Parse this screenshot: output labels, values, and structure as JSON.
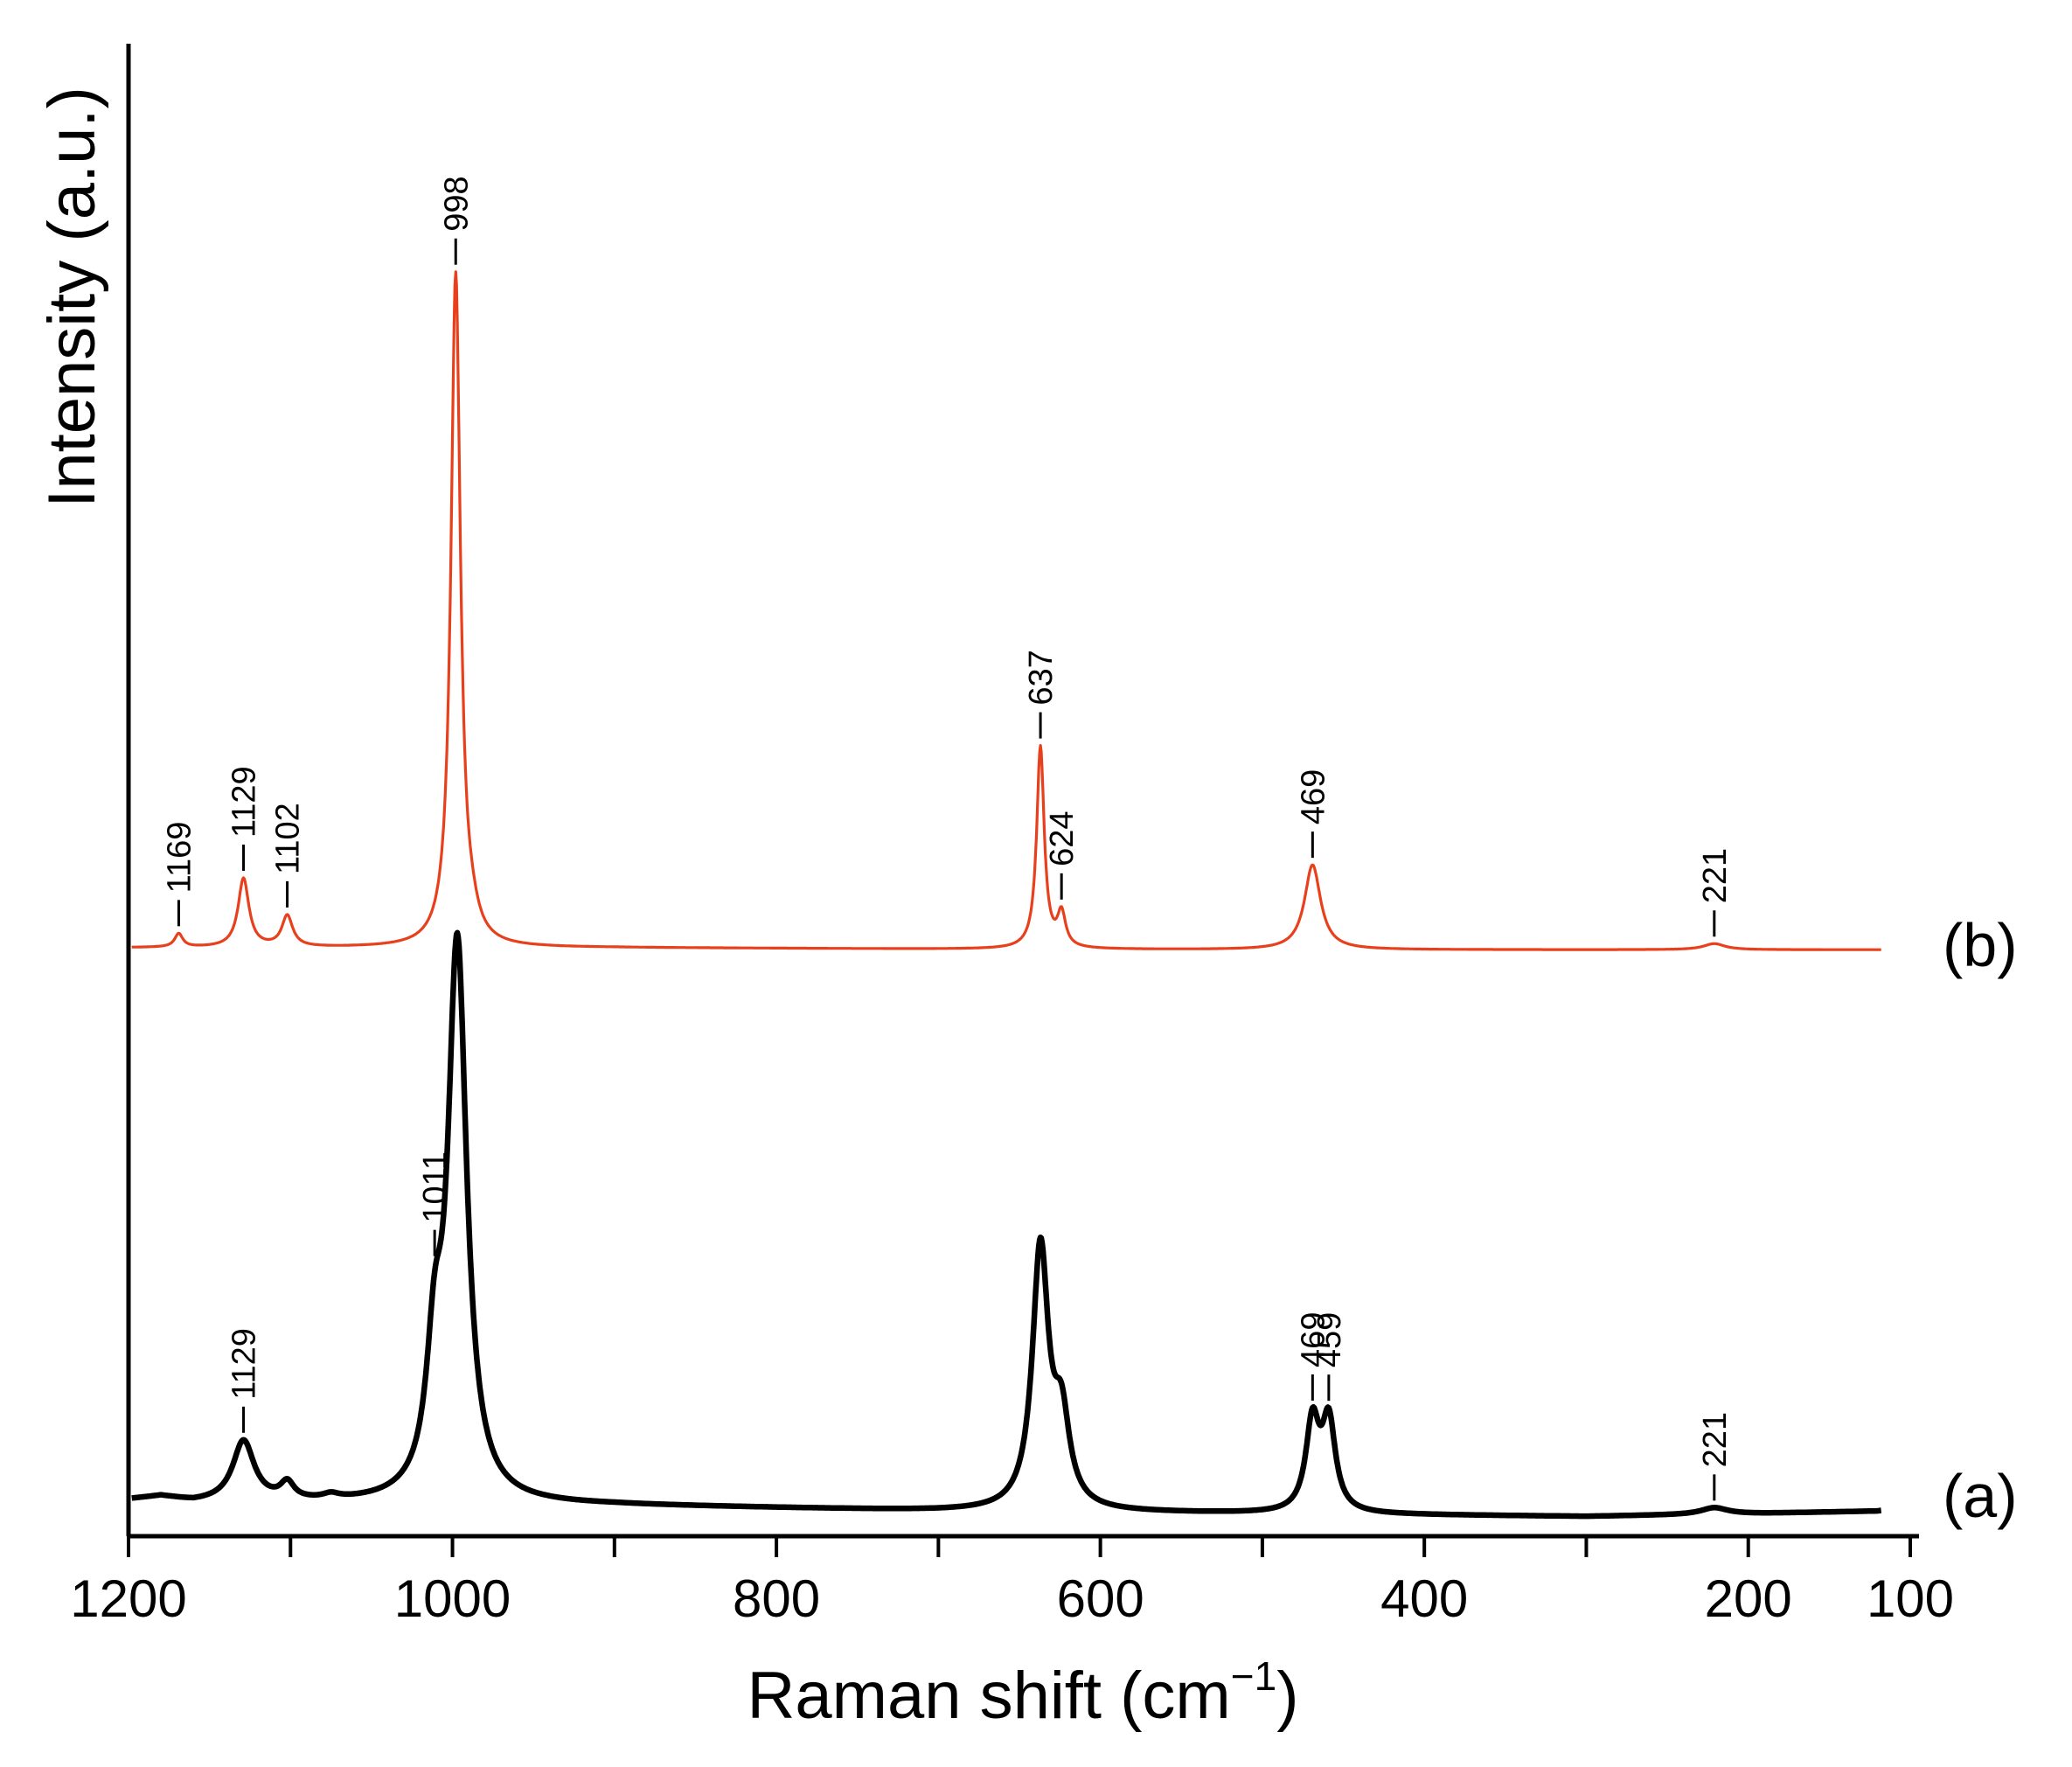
{
  "chart_data": {
    "type": "line",
    "title": "",
    "xlabel_main": "Raman shift (cm",
    "xlabel_sup": "−1",
    "xlabel_close": ")",
    "ylabel": "Intensity (a.u.)",
    "xlim": [
      1200,
      100
    ],
    "x_reversed": true,
    "x_ticks_major": [
      1200,
      1000,
      800,
      600,
      400,
      200,
      100
    ],
    "x_tick_labels": [
      "1200",
      "1000",
      "800",
      "600",
      "400",
      "200",
      "100"
    ],
    "x_ticks_minor": [
      1100,
      900,
      700,
      500,
      300
    ],
    "y_ticks": [],
    "grid": false,
    "legend": "none",
    "series": [
      {
        "name": "(a)",
        "color": "#000000",
        "baseline": 0.0,
        "background": [
          [
            1200,
            0.01
          ],
          [
            1180,
            0.015
          ],
          [
            1160,
            0.005
          ],
          [
            900,
            0.0
          ],
          [
            700,
            -0.01
          ],
          [
            500,
            -0.015
          ],
          [
            300,
            -0.02
          ],
          [
            200,
            -0.015
          ],
          [
            120,
            -0.01
          ],
          [
            100,
            0.0
          ]
        ],
        "peaks": [
          {
            "x": 1129,
            "h": 0.11,
            "w": 8
          },
          {
            "x": 1102,
            "h": 0.03,
            "w": 5
          },
          {
            "x": 1075,
            "h": 0.008,
            "w": 6
          },
          {
            "x": 1011,
            "h": 0.22,
            "w": 6
          },
          {
            "x": 997,
            "h": 1.0,
            "w": 7
          },
          {
            "x": 637,
            "h": 0.47,
            "w": 6
          },
          {
            "x": 624,
            "h": 0.15,
            "w": 6
          },
          {
            "x": 469,
            "h": 0.16,
            "w": 5
          },
          {
            "x": 459,
            "h": 0.16,
            "w": 5
          },
          {
            "x": 221,
            "h": 0.012,
            "w": 10
          }
        ],
        "peak_labels": [
          {
            "x": 1129,
            "text": "1129"
          },
          {
            "x": 1011,
            "text": "1011"
          },
          {
            "x": 469,
            "text": "469"
          },
          {
            "x": 459,
            "text": "459"
          },
          {
            "x": 221,
            "text": "221"
          }
        ]
      },
      {
        "name": "(b)",
        "color": "#e8401c",
        "baseline": 0.0,
        "background": [
          [
            1200,
            0.0
          ],
          [
            900,
            0.0
          ],
          [
            700,
            -0.002
          ],
          [
            500,
            -0.003
          ],
          [
            300,
            -0.003
          ],
          [
            100,
            -0.003
          ]
        ],
        "peaks": [
          {
            "x": 1169,
            "h": 0.02,
            "w": 3
          },
          {
            "x": 1129,
            "h": 0.102,
            "w": 4
          },
          {
            "x": 1102,
            "h": 0.046,
            "w": 4
          },
          {
            "x": 998,
            "h": 1.0,
            "w": 3.5
          },
          {
            "x": 988,
            "h": 0.02,
            "w": 5
          },
          {
            "x": 637,
            "h": 0.3,
            "w": 2.8
          },
          {
            "x": 624,
            "h": 0.05,
            "w": 3
          },
          {
            "x": 469,
            "h": 0.126,
            "w": 6
          },
          {
            "x": 221,
            "h": 0.009,
            "w": 8
          }
        ],
        "peak_labels": [
          {
            "x": 1169,
            "text": "1169"
          },
          {
            "x": 1129,
            "text": "1129"
          },
          {
            "x": 1102,
            "text": "1102"
          },
          {
            "x": 998,
            "text": "998"
          },
          {
            "x": 637,
            "text": "637"
          },
          {
            "x": 624,
            "text": "624"
          },
          {
            "x": 469,
            "text": "469"
          },
          {
            "x": 221,
            "text": "221"
          }
        ]
      }
    ]
  }
}
